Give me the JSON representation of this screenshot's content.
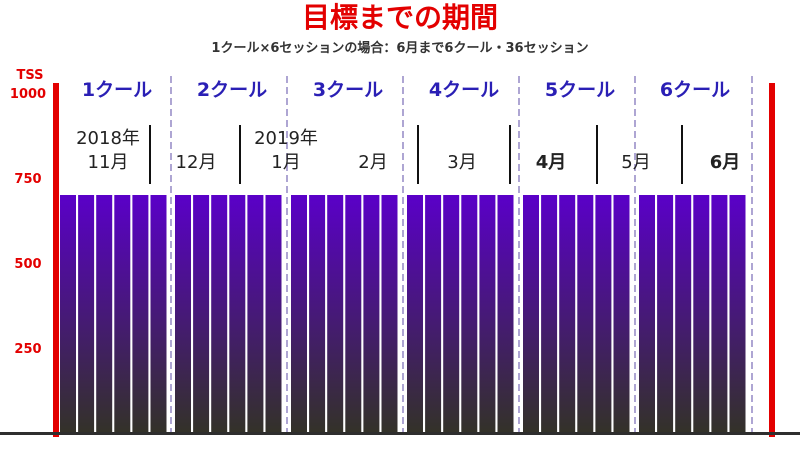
{
  "title": "目標までの期間",
  "subtitle": "1クール×6セッションの場合：6月まで6クール・36セッション",
  "chart_data": {
    "type": "bar",
    "ylabel": "TSS",
    "ylim": [
      0,
      1000
    ],
    "yticks": [
      250,
      500,
      750,
      1000
    ],
    "groups": [
      "1クール",
      "2クール",
      "3クール",
      "4クール",
      "5クール",
      "6クール"
    ],
    "sessions_per_group": 6,
    "values": [
      700,
      700,
      700,
      700,
      700,
      700,
      700,
      700,
      700,
      700,
      700,
      700,
      700,
      700,
      700,
      700,
      700,
      700,
      700,
      700,
      700,
      700,
      700,
      700,
      700,
      700,
      700,
      700,
      700,
      700,
      700,
      700,
      700,
      700,
      700,
      700
    ],
    "months": [
      {
        "year": "2018年",
        "label": "11月",
        "color": "#222222"
      },
      {
        "year": "",
        "label": "12月",
        "color": "#222222"
      },
      {
        "year": "2019年",
        "label": "1月",
        "color": "#222222"
      },
      {
        "year": "",
        "label": "2月",
        "color": "#222222"
      },
      {
        "year": "",
        "label": "3月",
        "color": "#222222"
      },
      {
        "year": "",
        "label": "4月",
        "color": "#1a3fa0"
      },
      {
        "year": "",
        "label": "5月",
        "color": "#222222"
      },
      {
        "year": "",
        "label": "6月",
        "color": "#e30000"
      }
    ],
    "colors": {
      "bar_top": "#5a00c8",
      "bar_bottom": "#333228",
      "axis": "#e30000",
      "group_label": "#2a1fb5"
    }
  }
}
